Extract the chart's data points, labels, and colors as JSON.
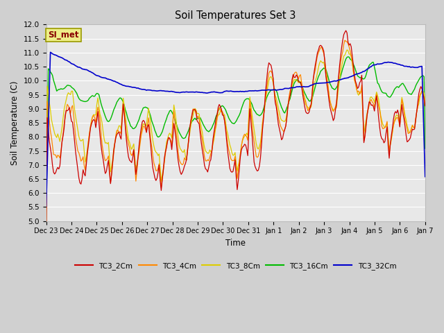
{
  "title": "Soil Temperatures Set 3",
  "xlabel": "Time",
  "ylabel": "Soil Temperature (C)",
  "ylim": [
    5.0,
    12.0
  ],
  "yticks": [
    5.0,
    5.5,
    6.0,
    6.5,
    7.0,
    7.5,
    8.0,
    8.5,
    9.0,
    9.5,
    10.0,
    10.5,
    11.0,
    11.5,
    12.0
  ],
  "xtick_labels": [
    "Dec 23",
    "Dec 24",
    "Dec 25",
    "Dec 26",
    "Dec 27",
    "Dec 28",
    "Dec 29",
    "Dec 30",
    "Dec 31",
    "Jan 1",
    "Jan 2",
    "Jan 3",
    "Jan 4",
    "Jan 5",
    "Jan 6",
    "Jan 7"
  ],
  "series_colors": [
    "#cc0000",
    "#ff8800",
    "#ddcc00",
    "#00bb00",
    "#0000cc"
  ],
  "series_names": [
    "TC3_2Cm",
    "TC3_4Cm",
    "TC3_8Cm",
    "TC3_16Cm",
    "TC3_32Cm"
  ],
  "plot_bg_color": "#e8e8e8",
  "fig_bg_color": "#d0d0d0",
  "grid_color": "#ffffff",
  "annotation_text": "SI_met",
  "annotation_bg": "#eeee88",
  "annotation_border": "#999900",
  "annotation_fg": "#880000"
}
